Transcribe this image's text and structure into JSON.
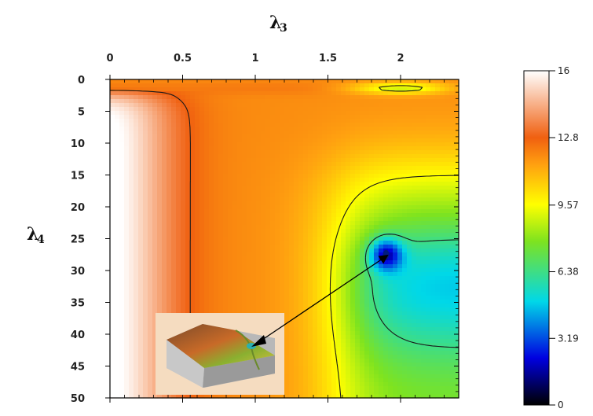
{
  "chart_data": {
    "type": "heatmap",
    "title": "",
    "xlabel": {
      "symbol": "λ",
      "subscript": "3"
    },
    "ylabel": {
      "symbol": "λ",
      "subscript": "4"
    },
    "x_ticks": [
      "0",
      "0.5",
      "1",
      "1.5",
      "2"
    ],
    "x_tick_values": [
      0,
      0.5,
      1,
      1.5,
      2
    ],
    "y_ticks": [
      "0",
      "5",
      "10",
      "15",
      "20",
      "25",
      "30",
      "35",
      "40",
      "45",
      "50"
    ],
    "y_tick_values": [
      0,
      5,
      10,
      15,
      20,
      25,
      30,
      35,
      40,
      45,
      50
    ],
    "xlim": [
      0,
      2.4
    ],
    "ylim": [
      0,
      50
    ],
    "y_axis_inverted": true,
    "colorbar": {
      "ticks": [
        "0",
        "3.19",
        "6.38",
        "9.57",
        "12.8",
        "16"
      ],
      "tick_values": [
        0,
        3.19,
        6.38,
        9.57,
        12.8,
        16
      ],
      "range": [
        0,
        16
      ],
      "colors": [
        "#000000",
        "#0000e0",
        "#00d8e8",
        "#7ee31f",
        "#ffff00",
        "#ffa010",
        "#f06010",
        "#ffffff"
      ],
      "color_stops": [
        0,
        2.2,
        5.0,
        7.8,
        9.57,
        11.5,
        12.8,
        16
      ]
    },
    "contour_levels": [
      6.38,
      9.57,
      12.8
    ],
    "minimum": {
      "x": 1.9,
      "y": 27.5
    },
    "inset": {
      "description_icon": "surface-3d-icon",
      "background": "#f5dcc0"
    },
    "arrow": {
      "from": "inset-surface",
      "to": "minimum",
      "color": "#000000"
    },
    "grid": false
  }
}
